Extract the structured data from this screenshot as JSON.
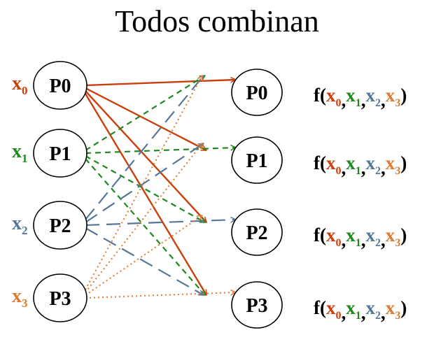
{
  "title": "Todos combinan",
  "colors": {
    "x0": "#c8400c",
    "x1": "#1d8a1d",
    "x2": "#557799",
    "x3": "#e07a30"
  },
  "sources": [
    {
      "label": "P0",
      "input": "x",
      "input_sub": "0",
      "color_key": "x0"
    },
    {
      "label": "P1",
      "input": "x",
      "input_sub": "1",
      "color_key": "x1"
    },
    {
      "label": "P2",
      "input": "x",
      "input_sub": "2",
      "color_key": "x2"
    },
    {
      "label": "P3",
      "input": "x",
      "input_sub": "3",
      "color_key": "x3"
    }
  ],
  "targets": [
    {
      "label": "P0"
    },
    {
      "label": "P1"
    },
    {
      "label": "P2"
    },
    {
      "label": "P3"
    }
  ],
  "result": {
    "prefix": "f(",
    "suffix": ")",
    "separator": ",",
    "args": [
      {
        "base": "x",
        "sub": "0",
        "color_key": "x0"
      },
      {
        "base": "x",
        "sub": "1",
        "color_key": "x1"
      },
      {
        "base": "x",
        "sub": "2",
        "color_key": "x2"
      },
      {
        "base": "x",
        "sub": "3",
        "color_key": "x3"
      }
    ]
  },
  "edge_styles": {
    "x0": "solid",
    "x1": "short-dash",
    "x2": "long-dash",
    "x3": "dotted"
  }
}
